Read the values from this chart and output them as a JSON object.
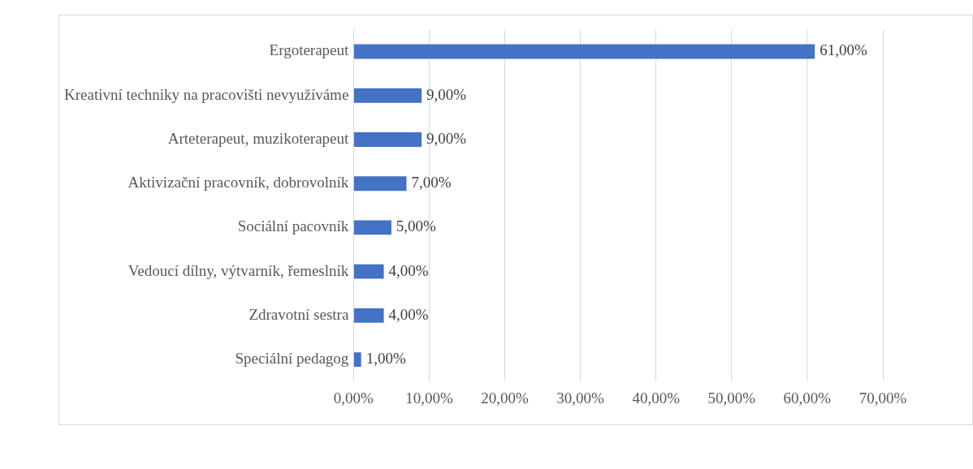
{
  "chart_data": {
    "type": "bar",
    "orientation": "horizontal",
    "categories": [
      "Ergoterapeut",
      "Kreativní techniky na pracovišti nevyužíváme",
      "Arteterapeut, muzikoterapeut",
      "Aktivizační pracovník, dobrovolník",
      "Sociální pacovník",
      "Vedoucí dílny, výtvarník, řemeslník",
      "Zdravotní sestra",
      "Speciální pedagog"
    ],
    "values": [
      61,
      9,
      9,
      7,
      5,
      4,
      4,
      1
    ],
    "value_labels": [
      "61,00%",
      "9,00%",
      "9,00%",
      "7,00%",
      "5,00%",
      "4,00%",
      "4,00%",
      "1,00%"
    ],
    "color": "#4472c4",
    "xlim": [
      0,
      70
    ],
    "xticks": [
      {
        "value": 0,
        "label": "0,00%"
      },
      {
        "value": 10,
        "label": "10,00%"
      },
      {
        "value": 20,
        "label": "20,00%"
      },
      {
        "value": 30,
        "label": "30,00%"
      },
      {
        "value": 40,
        "label": "40,00%"
      },
      {
        "value": 50,
        "label": "50,00%"
      },
      {
        "value": 60,
        "label": "60,00%"
      },
      {
        "value": 70,
        "label": "70,00%"
      }
    ],
    "grid": "x",
    "legend": false
  }
}
